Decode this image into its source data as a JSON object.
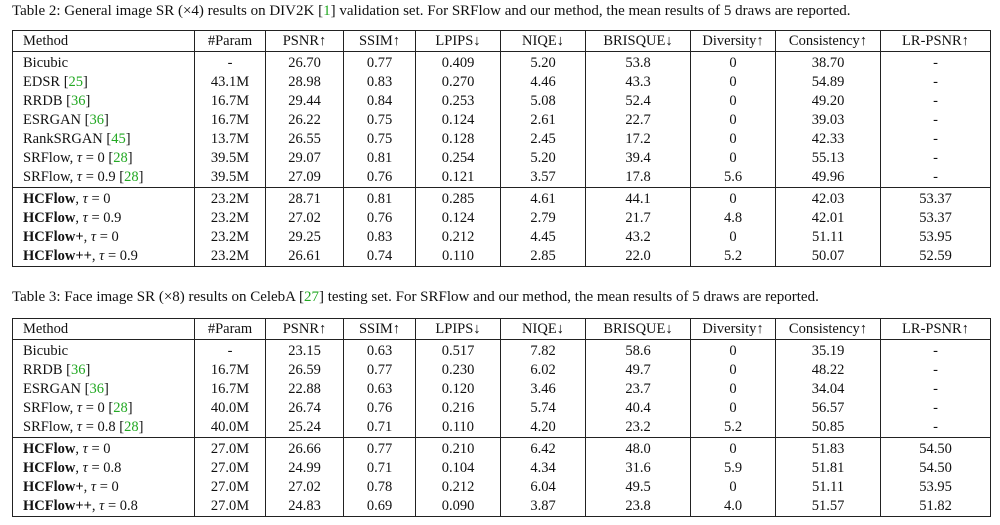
{
  "tables": [
    {
      "caption": "Table 2: General image SR (×4) results on DIV2K [1] validation set. For SRFlow and our method, the mean results of 5 draws are reported.",
      "header": [
        "Method",
        "#Param",
        "PSNR↑",
        "SSIM↑",
        "LPIPS↓",
        "NIQE↓",
        "BRISQUE↓",
        "Diversity↑",
        "Consistency↑",
        "LR-PSNR↑"
      ],
      "groups": [
        [
          [
            "Bicubic",
            "-",
            "26.70",
            "0.77",
            "0.409",
            "5.20",
            "53.8",
            "0",
            "38.70",
            "-"
          ],
          [
            "EDSR [25]",
            "43.1M",
            "28.98",
            "0.83",
            "0.270",
            "4.46",
            "43.3",
            "0",
            "54.89",
            "-"
          ],
          [
            "RRDB [36]",
            "16.7M",
            "29.44",
            "0.84",
            "0.253",
            "5.08",
            "52.4",
            "0",
            "49.20",
            "-"
          ],
          [
            "ESRGAN [36]",
            "16.7M",
            "26.22",
            "0.75",
            "0.124",
            "2.61",
            "22.7",
            "0",
            "39.03",
            "-"
          ],
          [
            "RankSRGAN [45]",
            "13.7M",
            "26.55",
            "0.75",
            "0.128",
            "2.45",
            "17.2",
            "0",
            "42.33",
            "-"
          ],
          [
            "SRFlow, τ = 0 [28]",
            "39.5M",
            "29.07",
            "0.81",
            "0.254",
            "5.20",
            "39.4",
            "0",
            "55.13",
            "-"
          ],
          [
            "SRFlow, τ = 0.9 [28]",
            "39.5M",
            "27.09",
            "0.76",
            "0.121",
            "3.57",
            "17.8",
            "5.6",
            "49.96",
            "-"
          ]
        ],
        [
          [
            "HCFlow, τ = 0",
            "23.2M",
            "28.71",
            "0.81",
            "0.285",
            "4.61",
            "44.1",
            "0",
            "42.03",
            "53.37"
          ],
          [
            "HCFlow, τ = 0.9",
            "23.2M",
            "27.02",
            "0.76",
            "0.124",
            "2.79",
            "21.7",
            "4.8",
            "42.01",
            "53.37"
          ],
          [
            "HCFlow+, τ = 0",
            "23.2M",
            "29.25",
            "0.83",
            "0.212",
            "4.45",
            "43.2",
            "0",
            "51.11",
            "53.95"
          ],
          [
            "HCFlow++, τ = 0.9",
            "23.2M",
            "26.61",
            "0.74",
            "0.110",
            "2.85",
            "22.0",
            "5.2",
            "50.07",
            "52.59"
          ]
        ]
      ]
    },
    {
      "caption": "Table 3: Face image SR (×8) results on CelebA [27] testing set. For SRFlow and our method, the mean results of 5 draws are reported.",
      "header": [
        "Method",
        "#Param",
        "PSNR↑",
        "SSIM↑",
        "LPIPS↓",
        "NIQE↓",
        "BRISQUE↓",
        "Diversity↑",
        "Consistency↑",
        "LR-PSNR↑"
      ],
      "groups": [
        [
          [
            "Bicubic",
            "-",
            "23.15",
            "0.63",
            "0.517",
            "7.82",
            "58.6",
            "0",
            "35.19",
            "-"
          ],
          [
            "RRDB [36]",
            "16.7M",
            "26.59",
            "0.77",
            "0.230",
            "6.02",
            "49.7",
            "0",
            "48.22",
            "-"
          ],
          [
            "ESRGAN [36]",
            "16.7M",
            "22.88",
            "0.63",
            "0.120",
            "3.46",
            "23.7",
            "0",
            "34.04",
            "-"
          ],
          [
            "SRFlow, τ = 0 [28]",
            "40.0M",
            "26.74",
            "0.76",
            "0.216",
            "5.74",
            "40.4",
            "0",
            "56.57",
            "-"
          ],
          [
            "SRFlow, τ = 0.8 [28]",
            "40.0M",
            "25.24",
            "0.71",
            "0.110",
            "4.20",
            "23.2",
            "5.2",
            "50.85",
            "-"
          ]
        ],
        [
          [
            "HCFlow, τ = 0",
            "27.0M",
            "26.66",
            "0.77",
            "0.210",
            "6.42",
            "48.0",
            "0",
            "51.83",
            "54.50"
          ],
          [
            "HCFlow, τ = 0.8",
            "27.0M",
            "24.99",
            "0.71",
            "0.104",
            "4.34",
            "31.6",
            "5.9",
            "51.81",
            "54.50"
          ],
          [
            "HCFlow+, τ = 0",
            "27.0M",
            "27.02",
            "0.78",
            "0.212",
            "6.04",
            "49.5",
            "0",
            "51.11",
            "53.95"
          ],
          [
            "HCFlow++, τ = 0.8",
            "27.0M",
            "24.83",
            "0.69",
            "0.090",
            "3.87",
            "23.8",
            "4.0",
            "51.57",
            "51.82"
          ]
        ]
      ]
    }
  ]
}
